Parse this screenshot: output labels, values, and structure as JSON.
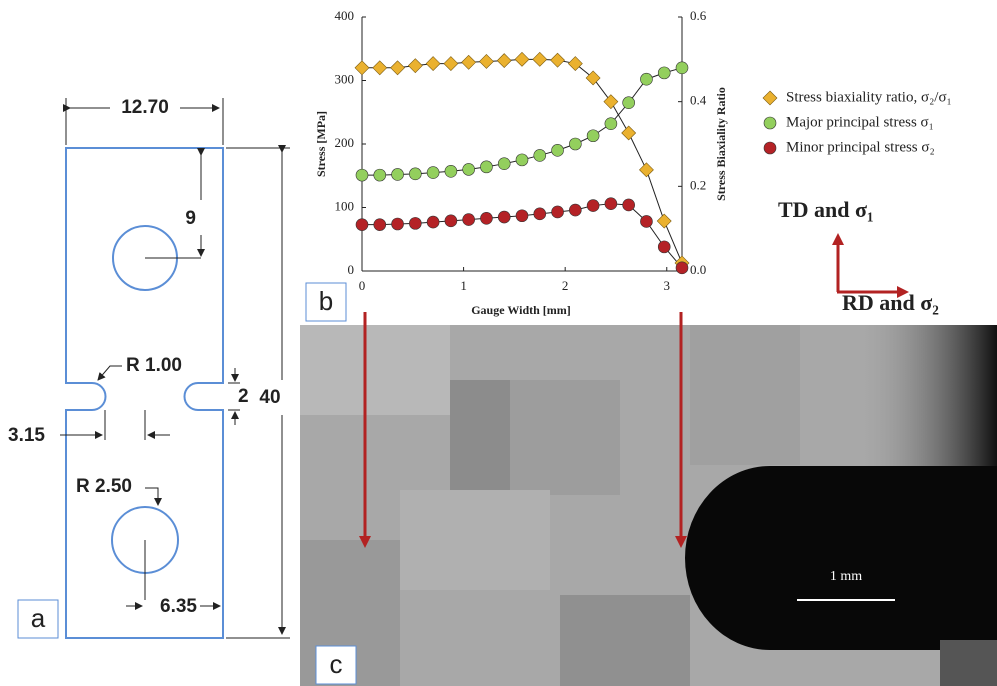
{
  "chart_data": {
    "type": "line",
    "x": [
      0,
      0.175,
      0.35,
      0.525,
      0.7,
      0.875,
      1.05,
      1.225,
      1.4,
      1.575,
      1.75,
      1.925,
      2.1,
      2.275,
      2.45,
      2.625,
      2.8,
      2.975,
      3.15
    ],
    "x_label": "Gauge Width [mm]",
    "y_label": "Stress [MPa]",
    "y2_label": "Stress Biaxiality Ratio",
    "xlim": [
      0,
      3.15
    ],
    "xticks": [
      0,
      1,
      2,
      3
    ],
    "ylim": [
      0,
      400
    ],
    "yticks": [
      0,
      100,
      200,
      300,
      400
    ],
    "y2lim": [
      0,
      0.6
    ],
    "y2ticks": [
      {
        "value": 0,
        "label": "0.0"
      },
      0.2,
      0.4,
      0.6
    ],
    "series": [
      {
        "name": "Stress biaxiality ratio, σ₂/σ₁",
        "color": "#eab12f",
        "marker": "diamond",
        "axis": "y2",
        "values": [
          0.48,
          0.48,
          0.48,
          0.485,
          0.49,
          0.49,
          0.493,
          0.495,
          0.497,
          0.5,
          0.5,
          0.498,
          0.49,
          0.456,
          0.4,
          0.326,
          0.239,
          0.118,
          0.019
        ]
      },
      {
        "name": "Major principal stress σ₁",
        "color": "#93cf5d",
        "marker": "circle",
        "values": [
          151,
          151,
          152,
          153,
          155,
          157,
          160,
          164,
          169,
          175,
          182,
          190,
          200,
          213,
          232,
          265,
          302,
          312,
          320
        ]
      },
      {
        "name": "Minor principal stress σ₂",
        "color": "#b42226",
        "marker": "circle",
        "values": [
          73,
          73,
          74,
          75,
          77,
          79,
          81,
          83,
          85,
          87,
          90,
          93,
          96,
          103,
          106,
          104,
          78,
          38,
          5
        ]
      }
    ]
  },
  "panel_labels": [
    "a",
    "b",
    "c"
  ],
  "drawing": {
    "dimensions": [
      "12.70",
      "9",
      "R 1.00",
      "2",
      "40",
      "3.15",
      "R 2.50",
      "6.35"
    ]
  },
  "directions": [
    "TD and σ₁",
    "RD and σ₂"
  ],
  "scale_bar": "1 mm"
}
